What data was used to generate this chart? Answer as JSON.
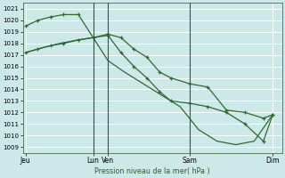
{
  "xlabel": "Pression niveau de la mer( hPa )",
  "bg_color": "#cce8e8",
  "grid_color": "#b0d8d8",
  "line_color": "#2d6a2d",
  "ylim": [
    1008.5,
    1021.5
  ],
  "yticks": [
    1009,
    1010,
    1011,
    1012,
    1013,
    1014,
    1015,
    1016,
    1017,
    1018,
    1019,
    1020,
    1021
  ],
  "xlim": [
    0,
    14.0
  ],
  "vlines": [
    3.8,
    4.6,
    9.0
  ],
  "xtick_positions": [
    0.15,
    3.8,
    4.6,
    9.0,
    13.5
  ],
  "xtick_labels": [
    "Jeu",
    "Lun",
    "Ven",
    "Sam",
    "Dim"
  ],
  "series1_x": [
    0.15,
    0.8,
    1.5,
    2.2,
    3.0,
    3.8,
    4.6,
    5.3,
    6.0,
    6.7,
    7.4,
    8.0,
    9.0,
    10.0,
    11.0,
    12.0,
    13.0,
    13.5
  ],
  "series1_y": [
    1019.5,
    1020.0,
    1020.3,
    1020.5,
    1020.5,
    1018.5,
    1018.8,
    1018.5,
    1017.5,
    1016.8,
    1015.5,
    1015.0,
    1014.5,
    1014.2,
    1012.2,
    1012.0,
    1011.5,
    1011.8
  ],
  "series2_x": [
    0.15,
    0.8,
    1.5,
    2.2,
    3.0,
    3.8,
    4.6,
    5.3,
    6.0,
    6.7,
    7.4,
    8.0,
    9.0,
    10.0,
    11.0,
    12.0,
    13.0,
    13.5
  ],
  "series2_y": [
    1017.2,
    1017.5,
    1017.8,
    1018.0,
    1018.3,
    1018.5,
    1018.7,
    1017.2,
    1016.0,
    1015.0,
    1013.8,
    1013.0,
    1012.8,
    1012.5,
    1012.0,
    1011.0,
    1009.5,
    1011.8
  ],
  "series3_x": [
    0.15,
    1.0,
    2.0,
    3.0,
    3.8,
    4.6,
    5.5,
    6.5,
    7.5,
    8.5,
    9.5,
    10.5,
    11.5,
    12.5,
    13.5
  ],
  "series3_y": [
    1017.2,
    1017.6,
    1018.0,
    1018.3,
    1018.5,
    1016.5,
    1015.5,
    1014.5,
    1013.5,
    1012.5,
    1010.5,
    1009.5,
    1009.2,
    1009.5,
    1011.8
  ]
}
